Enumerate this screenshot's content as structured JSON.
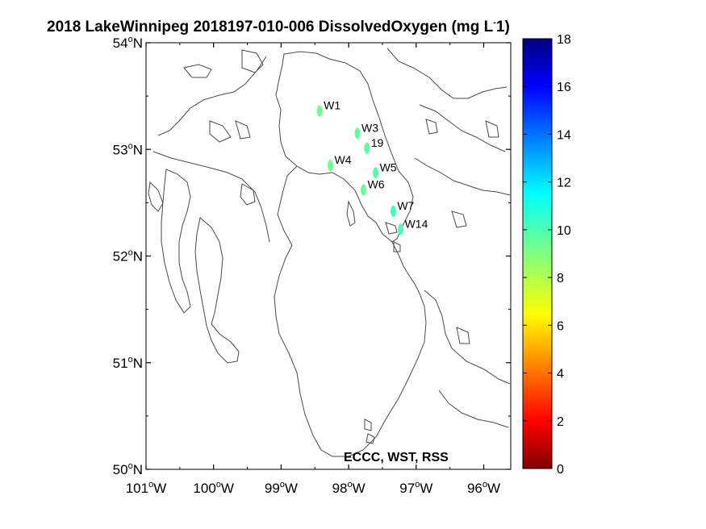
{
  "map": {
    "title": "2018 LakeWinnipeg 2018197-010-006 DissolvedOxygen (mg L",
    "title_sup": "-",
    "title_end": "1)",
    "credit": "ECCC, WST, RSS",
    "variable_units": "mg L-1",
    "lon_range": [
      -101,
      -95.6
    ],
    "lat_range": [
      50,
      54
    ],
    "lon_ticks": [
      {
        "value": -101,
        "label": "101"
      },
      {
        "value": -100,
        "label": "100"
      },
      {
        "value": -99,
        "label": "99"
      },
      {
        "value": -98,
        "label": "98"
      },
      {
        "value": -97,
        "label": "97"
      },
      {
        "value": -96,
        "label": "96"
      }
    ],
    "lat_ticks": [
      {
        "value": 50,
        "label": "50"
      },
      {
        "value": 51,
        "label": "51"
      },
      {
        "value": 52,
        "label": "52"
      },
      {
        "value": 53,
        "label": "53"
      },
      {
        "value": 54,
        "label": "54"
      }
    ],
    "degree_symbol": "o",
    "west_letter": "W",
    "north_letter": "N",
    "colorbar": {
      "min": 0,
      "max": 18,
      "ticks": [
        "0",
        "2",
        "4",
        "6",
        "8",
        "10",
        "12",
        "14",
        "16",
        "18"
      ],
      "colormap": "jet"
    },
    "stations": [
      {
        "name": "W1",
        "lon": -98.43,
        "lat": 53.36,
        "value": 8.8
      },
      {
        "name": "W3",
        "lon": -97.87,
        "lat": 53.15,
        "value": 8.5
      },
      {
        "name": "19",
        "lon": -97.73,
        "lat": 53.01,
        "value": 8.4
      },
      {
        "name": "W4",
        "lon": -98.27,
        "lat": 52.85,
        "value": 8.7
      },
      {
        "name": "W5",
        "lon": -97.6,
        "lat": 52.78,
        "value": 8.2
      },
      {
        "name": "W6",
        "lon": -97.78,
        "lat": 52.62,
        "value": 8.6
      },
      {
        "name": "W7",
        "lon": -97.34,
        "lat": 52.42,
        "value": 8.0
      },
      {
        "name": "W14",
        "lon": -97.23,
        "lat": 52.25,
        "value": 8.1
      }
    ]
  }
}
